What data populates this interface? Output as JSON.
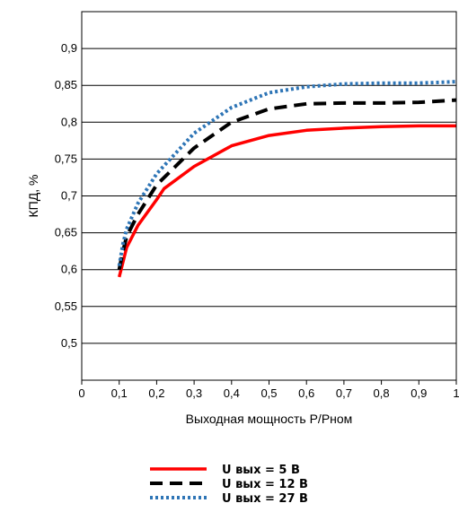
{
  "chart_data": {
    "type": "line",
    "title": "",
    "xlabel": "Выходная мощность Р/Рном",
    "ylabel": "КПД, %",
    "xlim": [
      0,
      1
    ],
    "ylim": [
      0.45,
      0.95
    ],
    "x_ticks": [
      0,
      0.1,
      0.2,
      0.3,
      0.4,
      0.5,
      0.6,
      0.7,
      0.8,
      0.9,
      1
    ],
    "x_tick_labels": [
      "0",
      "0,1",
      "0,2",
      "0,3",
      "0,4",
      "0,5",
      "0,6",
      "0,7",
      "0,8",
      "0,9",
      "1"
    ],
    "y_ticks": [
      0.5,
      0.55,
      0.6,
      0.65,
      0.7,
      0.75,
      0.8,
      0.85,
      0.9
    ],
    "y_tick_labels": [
      "0,5",
      "0,55",
      "0,6",
      "0,65",
      "0,7",
      "0,75",
      "0,8",
      "0,85",
      "0,9"
    ],
    "grid": "horizontal",
    "legend_position": "bottom",
    "series": [
      {
        "name": "U вых = 5 В",
        "color": "#ff0000",
        "style": "solid",
        "x": [
          0.1,
          0.11,
          0.12,
          0.15,
          0.2,
          0.22,
          0.3,
          0.4,
          0.5,
          0.6,
          0.7,
          0.8,
          0.9,
          1.0
        ],
        "y": [
          0.59,
          0.61,
          0.63,
          0.66,
          0.695,
          0.71,
          0.74,
          0.768,
          0.782,
          0.789,
          0.792,
          0.794,
          0.795,
          0.795
        ]
      },
      {
        "name": "U вых = 12 В",
        "color": "#000000",
        "style": "dashed",
        "x": [
          0.1,
          0.11,
          0.12,
          0.15,
          0.2,
          0.3,
          0.4,
          0.5,
          0.6,
          0.7,
          0.8,
          0.9,
          1.0
        ],
        "y": [
          0.6,
          0.625,
          0.645,
          0.675,
          0.715,
          0.765,
          0.8,
          0.818,
          0.825,
          0.826,
          0.826,
          0.827,
          0.83
        ]
      },
      {
        "name": "U вых = 27 В",
        "color": "#2e75b6",
        "style": "dotted",
        "x": [
          0.1,
          0.11,
          0.12,
          0.15,
          0.2,
          0.3,
          0.4,
          0.5,
          0.6,
          0.7,
          0.8,
          0.9,
          1.0
        ],
        "y": [
          0.605,
          0.635,
          0.655,
          0.69,
          0.73,
          0.785,
          0.82,
          0.84,
          0.848,
          0.852,
          0.853,
          0.853,
          0.855
        ]
      }
    ]
  }
}
